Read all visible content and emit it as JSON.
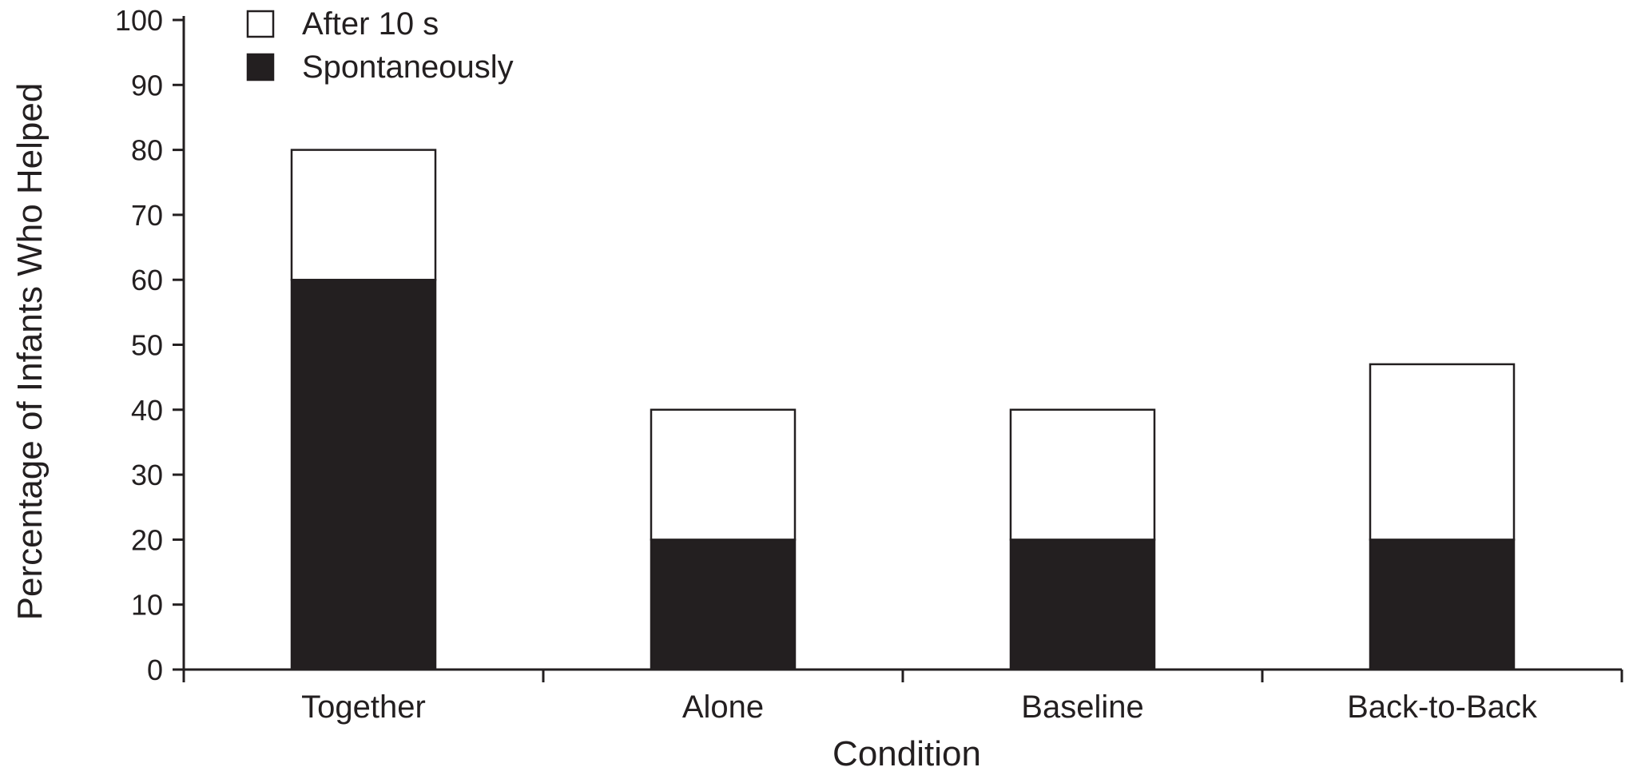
{
  "chart_data": {
    "type": "bar",
    "stacked": true,
    "title": "",
    "xlabel": "Condition",
    "ylabel": "Percentage of Infants Who Helped",
    "ylim": [
      0,
      100
    ],
    "yticks": [
      0,
      10,
      20,
      30,
      40,
      50,
      60,
      70,
      80,
      90,
      100
    ],
    "categories": [
      "Together",
      "Alone",
      "Baseline",
      "Back-to-Back"
    ],
    "series": [
      {
        "name": "Spontaneously",
        "values": [
          60,
          20,
          20,
          20
        ],
        "color": "#231f20"
      },
      {
        "name": "After 10 s",
        "values": [
          20,
          20,
          20,
          27
        ],
        "color": "#ffffff"
      }
    ],
    "legend": {
      "position": "top-left",
      "entries": [
        "After 10 s",
        "Spontaneously"
      ]
    },
    "grid": false
  }
}
